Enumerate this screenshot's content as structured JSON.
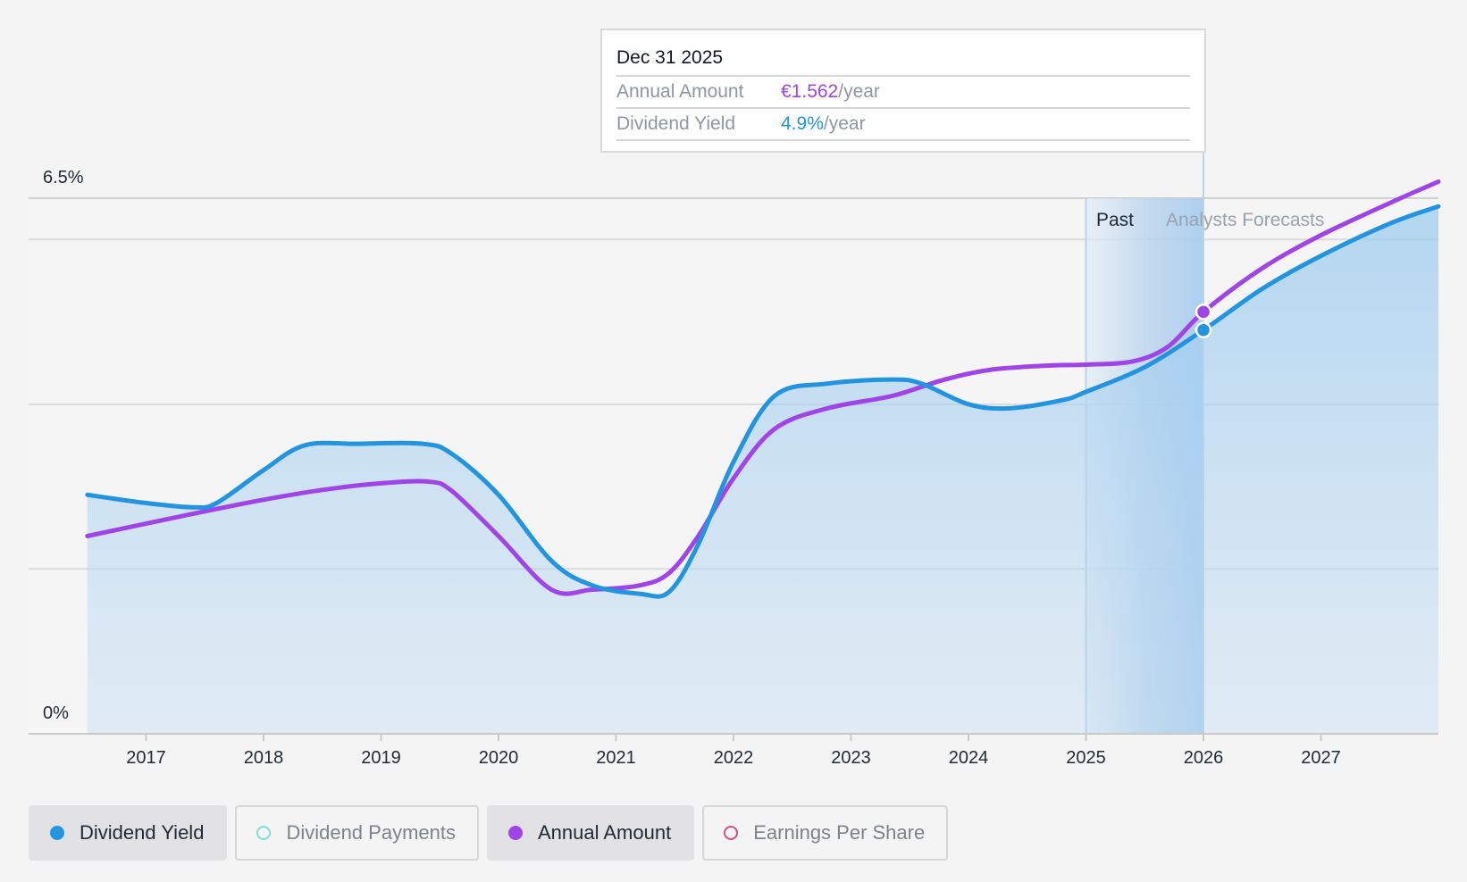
{
  "tooltip": {
    "date": "Dec 31 2025",
    "rows": [
      {
        "label": "Annual Amount",
        "value": "€1.562",
        "unit": "/year"
      },
      {
        "label": "Dividend Yield",
        "value": "4.9%",
        "unit": "/year"
      }
    ]
  },
  "periods": {
    "past": "Past",
    "forecast": "Analysts Forecasts"
  },
  "legend": [
    {
      "label": "Dividend Yield",
      "color": "#2394e0",
      "active": true,
      "filled": true
    },
    {
      "label": "Dividend Payments",
      "color": "#7ee0dc",
      "active": false,
      "filled": false
    },
    {
      "label": "Annual Amount",
      "color": "#a044e8",
      "active": true,
      "filled": true
    },
    {
      "label": "Earnings Per Share",
      "color": "#d04f8a",
      "active": false,
      "filled": false
    }
  ],
  "chart_data": {
    "type": "line",
    "x_ticks": [
      "2017",
      "2018",
      "2019",
      "2020",
      "2021",
      "2022",
      "2023",
      "2024",
      "2025",
      "2026",
      "2027"
    ],
    "y_ticks": [
      "0%",
      "6.5%"
    ],
    "ylim": [
      0,
      6.5
    ],
    "xlim": [
      2016.0,
      2028.0
    ],
    "past_start": 2025.0,
    "forecast_start": 2025.52,
    "cursor_x": 2026.0,
    "series": [
      {
        "name": "Dividend Yield",
        "color": "#2394e0",
        "points": [
          [
            2016.5,
            2.9
          ],
          [
            2017.0,
            2.8
          ],
          [
            2017.4,
            2.75
          ],
          [
            2017.6,
            2.8
          ],
          [
            2018.0,
            3.2
          ],
          [
            2018.35,
            3.5
          ],
          [
            2018.8,
            3.52
          ],
          [
            2019.35,
            3.52
          ],
          [
            2019.6,
            3.4
          ],
          [
            2020.0,
            2.9
          ],
          [
            2020.45,
            2.1
          ],
          [
            2020.8,
            1.8
          ],
          [
            2021.2,
            1.7
          ],
          [
            2021.45,
            1.72
          ],
          [
            2021.7,
            2.3
          ],
          [
            2022.0,
            3.3
          ],
          [
            2022.35,
            4.1
          ],
          [
            2022.8,
            4.25
          ],
          [
            2023.35,
            4.3
          ],
          [
            2023.6,
            4.25
          ],
          [
            2024.0,
            4.0
          ],
          [
            2024.35,
            3.95
          ],
          [
            2024.8,
            4.05
          ],
          [
            2025.0,
            4.15
          ],
          [
            2025.5,
            4.45
          ],
          [
            2026.0,
            4.9
          ],
          [
            2026.5,
            5.4
          ],
          [
            2027.0,
            5.8
          ],
          [
            2027.6,
            6.2
          ],
          [
            2028.0,
            6.4
          ]
        ]
      },
      {
        "name": "Annual Amount",
        "color": "#a044e8",
        "points": [
          [
            2016.5,
            2.4
          ],
          [
            2017.0,
            2.55
          ],
          [
            2017.5,
            2.7
          ],
          [
            2018.0,
            2.84
          ],
          [
            2018.5,
            2.96
          ],
          [
            2019.0,
            3.04
          ],
          [
            2019.4,
            3.06
          ],
          [
            2019.6,
            2.95
          ],
          [
            2020.0,
            2.4
          ],
          [
            2020.45,
            1.75
          ],
          [
            2020.8,
            1.75
          ],
          [
            2021.2,
            1.8
          ],
          [
            2021.45,
            1.95
          ],
          [
            2021.7,
            2.4
          ],
          [
            2022.0,
            3.1
          ],
          [
            2022.35,
            3.7
          ],
          [
            2022.8,
            3.95
          ],
          [
            2023.35,
            4.1
          ],
          [
            2023.8,
            4.3
          ],
          [
            2024.2,
            4.42
          ],
          [
            2024.7,
            4.47
          ],
          [
            2025.0,
            4.48
          ],
          [
            2025.4,
            4.52
          ],
          [
            2025.7,
            4.7
          ],
          [
            2026.0,
            5.12
          ],
          [
            2026.5,
            5.65
          ],
          [
            2027.0,
            6.05
          ],
          [
            2027.6,
            6.45
          ],
          [
            2028.0,
            6.7
          ]
        ]
      }
    ]
  }
}
